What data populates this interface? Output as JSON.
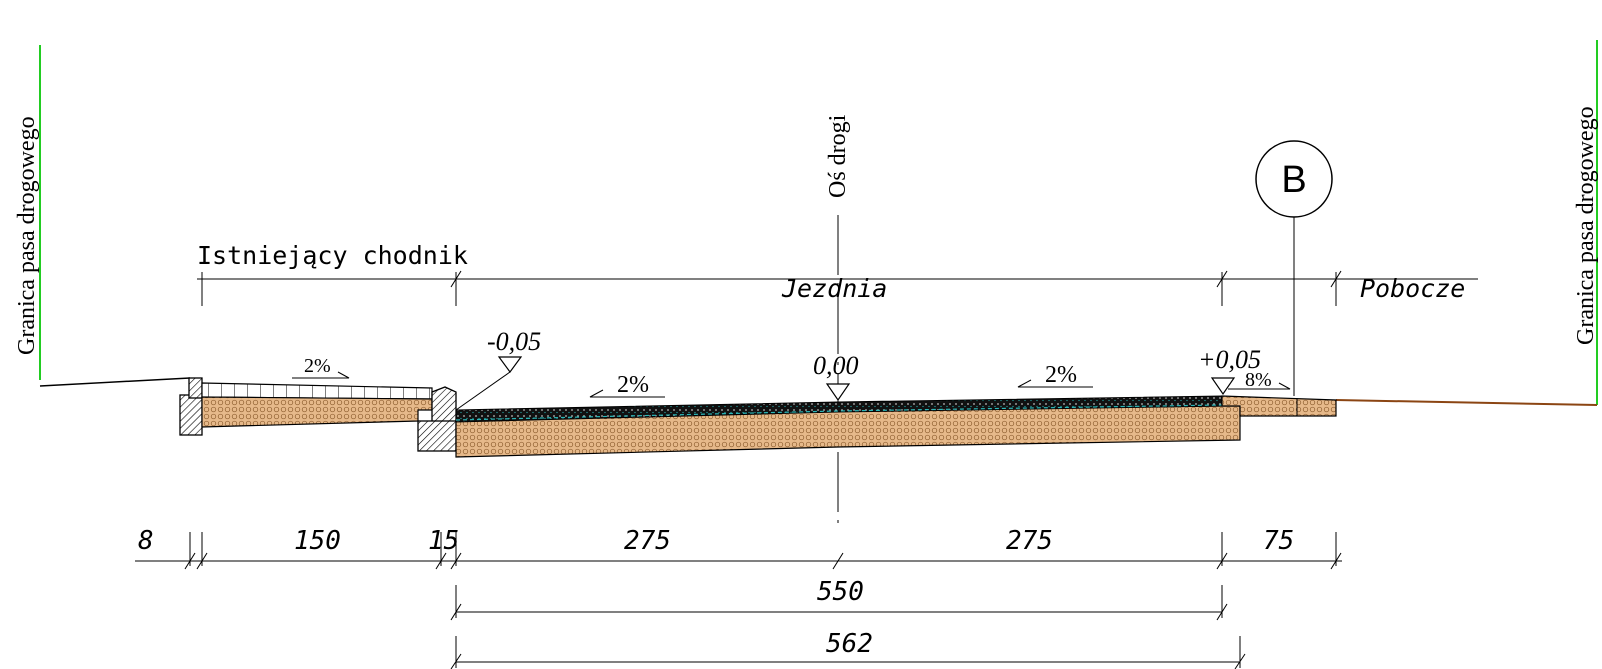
{
  "boundary_label_left": "Granica pasa drogowego",
  "boundary_label_right": "Granica pasa drogowego",
  "axis_label": "Oś drogi",
  "marker_label": "B",
  "sections": {
    "sidewalk": "Istniejący chodnik",
    "roadway": "Jezdnia",
    "shoulder": "Pobocze"
  },
  "elevations": {
    "left_curb": "-0,05",
    "axis": "0,00",
    "right_edge": "+0,05"
  },
  "slopes": {
    "sidewalk": "2%",
    "road_left": "2%",
    "road_right": "2%",
    "shoulder": "8%"
  },
  "dimensions": {
    "d8": "8",
    "d150": "150",
    "d15": "15",
    "d275_left": "275",
    "d275_right": "275",
    "d75": "75",
    "d550": "550",
    "d562": "562"
  },
  "colors": {
    "boundary_line": "#22cc22",
    "terrain_line": "#8b4513",
    "aggregate_fill": "#e6b98a",
    "asphalt": "#111111",
    "binder_accent": "#2bb7b7"
  }
}
